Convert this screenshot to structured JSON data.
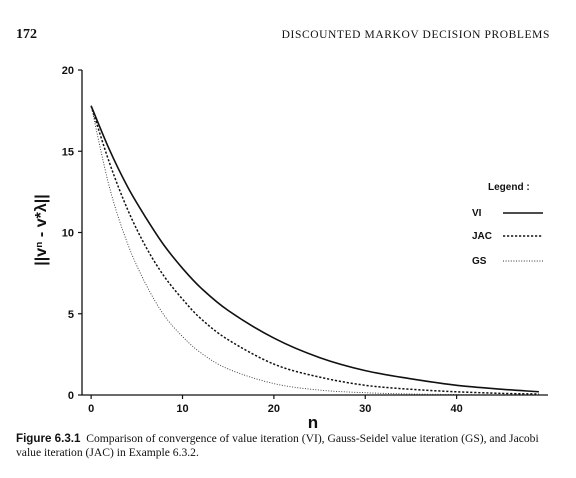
{
  "header": {
    "page_number": "172",
    "running_head": "DISCOUNTED MARKOV DECISION PROBLEMS"
  },
  "caption": {
    "label": "Figure 6.3.1",
    "text": "Comparison of convergence of value iteration (VI), Gauss-Seidel value iteration (GS), and Jacobi value iteration (JAC) in Example 6.3.2."
  },
  "chart_data": {
    "type": "line",
    "title": "",
    "xlabel": "n",
    "ylabel": "||vⁿ - v*λ||",
    "xlim": [
      -1,
      50
    ],
    "ylim": [
      0,
      20
    ],
    "x_ticks": [
      0,
      10,
      20,
      30,
      40
    ],
    "y_ticks": [
      0,
      5,
      10,
      15,
      20
    ],
    "legend": {
      "title": "Legend :",
      "placement": "right",
      "entries": [
        "VI",
        "JAC",
        "GS"
      ]
    },
    "series": [
      {
        "name": "VI",
        "style": "solid",
        "x": [
          0,
          2,
          4,
          6,
          8,
          10,
          12,
          15,
          20,
          25,
          30,
          35,
          40,
          45,
          49
        ],
        "y": [
          17.8,
          15.1,
          12.8,
          10.9,
          9.2,
          7.8,
          6.6,
          5.2,
          3.5,
          2.3,
          1.5,
          1.0,
          0.6,
          0.35,
          0.2
        ]
      },
      {
        "name": "JAC",
        "style": "dotted",
        "x": [
          0,
          2,
          4,
          6,
          8,
          10,
          12,
          15,
          20,
          25,
          30,
          35,
          40,
          45,
          49
        ],
        "y": [
          17.8,
          14.3,
          11.4,
          9.1,
          7.3,
          5.9,
          4.7,
          3.4,
          1.9,
          1.1,
          0.6,
          0.35,
          0.2,
          0.1,
          0.06
        ]
      },
      {
        "name": "GS",
        "style": "fine-dotted",
        "x": [
          0,
          2,
          4,
          6,
          8,
          10,
          12,
          15,
          20,
          25,
          30,
          35,
          40,
          45,
          49
        ],
        "y": [
          17.8,
          12.8,
          9.3,
          6.8,
          4.9,
          3.6,
          2.6,
          1.6,
          0.7,
          0.3,
          0.14,
          0.06,
          0.03,
          0.01,
          0.0
        ]
      }
    ]
  }
}
